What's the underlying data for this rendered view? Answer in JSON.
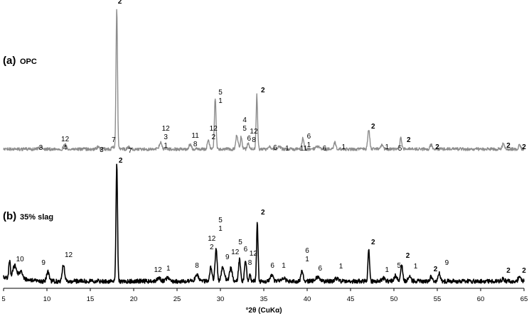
{
  "chart_data": {
    "type": "line",
    "xlabel": "°2θ (CuKα)",
    "ylabel": "",
    "xlim": [
      5,
      65
    ],
    "x_ticks": [
      5,
      10,
      15,
      20,
      25,
      30,
      35,
      40,
      45,
      50,
      55,
      60,
      65
    ],
    "y_ticks": "none",
    "grid": false,
    "legend": "none",
    "panels": [
      {
        "id": "a",
        "label_letter": "(a)",
        "label_text": "OPC",
        "color": "#8c8c8c",
        "baseline": 210,
        "noise_amp": 2.2,
        "peaks": [
          {
            "x": 9.3,
            "h": 3,
            "w": 0.25
          },
          {
            "x": 12.1,
            "h": 6,
            "w": 0.22
          },
          {
            "x": 15.9,
            "h": 3,
            "w": 0.2
          },
          {
            "x": 17.6,
            "h": 3,
            "w": 0.15
          },
          {
            "x": 18.05,
            "h": 196,
            "w": 0.12
          },
          {
            "x": 19.4,
            "h": 3,
            "w": 0.15
          },
          {
            "x": 23.1,
            "h": 10,
            "w": 0.18
          },
          {
            "x": 26.5,
            "h": 6,
            "w": 0.2
          },
          {
            "x": 28.6,
            "h": 14,
            "w": 0.15
          },
          {
            "x": 29.4,
            "h": 72,
            "w": 0.13
          },
          {
            "x": 31.9,
            "h": 20,
            "w": 0.18
          },
          {
            "x": 32.4,
            "h": 18,
            "w": 0.13
          },
          {
            "x": 33.2,
            "h": 8,
            "w": 0.15
          },
          {
            "x": 34.2,
            "h": 76,
            "w": 0.12
          },
          {
            "x": 35.7,
            "h": 4,
            "w": 0.15
          },
          {
            "x": 36.8,
            "h": 4,
            "w": 0.2
          },
          {
            "x": 39.5,
            "h": 15,
            "w": 0.16
          },
          {
            "x": 41.2,
            "h": 4,
            "w": 0.25
          },
          {
            "x": 43.2,
            "h": 9,
            "w": 0.16
          },
          {
            "x": 47.1,
            "h": 28,
            "w": 0.16
          },
          {
            "x": 48.6,
            "h": 6,
            "w": 0.18
          },
          {
            "x": 50.8,
            "h": 15,
            "w": 0.16
          },
          {
            "x": 54.3,
            "h": 6,
            "w": 0.18
          },
          {
            "x": 62.6,
            "h": 8,
            "w": 0.16
          },
          {
            "x": 64.5,
            "h": 6,
            "w": 0.16
          }
        ],
        "peak_labels": [
          {
            "x": 9.3,
            "y": 211,
            "lines": [
              "3"
            ]
          },
          {
            "x": 12.1,
            "y": 211,
            "lines": [
              "12",
              "4"
            ]
          },
          {
            "x": 16.3,
            "y": 214,
            "lines": [
              "3"
            ]
          },
          {
            "x": 17.7,
            "y": 200,
            "lines": [
              "7"
            ]
          },
          {
            "x": 18.4,
            "y": 5,
            "lines": [
              "2"
            ]
          },
          {
            "x": 19.6,
            "y": 215,
            "lines": [
              "7"
            ]
          },
          {
            "x": 23.7,
            "y": 208,
            "lines": [
              "12",
              "3",
              "1"
            ]
          },
          {
            "x": 27.1,
            "y": 206,
            "lines": [
              "11",
              "8"
            ]
          },
          {
            "x": 29.2,
            "y": 196,
            "lines": [
              "12",
              "2"
            ]
          },
          {
            "x": 30.0,
            "y": 145,
            "lines": [
              "5",
              "1"
            ]
          },
          {
            "x": 32.8,
            "y": 184,
            "lines": [
              "4",
              "5"
            ]
          },
          {
            "x": 33.3,
            "y": 198,
            "lines": [
              "6"
            ]
          },
          {
            "x": 33.85,
            "y": 200,
            "lines": [
              "12",
              "8"
            ]
          },
          {
            "x": 34.9,
            "y": 130,
            "lines": [
              "2"
            ]
          },
          {
            "x": 36.3,
            "y": 211,
            "lines": [
              "6"
            ]
          },
          {
            "x": 37.7,
            "y": 212,
            "lines": [
              "1"
            ]
          },
          {
            "x": 39.6,
            "y": 212,
            "lines": [
              "11"
            ]
          },
          {
            "x": 40.2,
            "y": 207,
            "lines": [
              "6",
              "1"
            ]
          },
          {
            "x": 42.0,
            "y": 212,
            "lines": [
              "6"
            ]
          },
          {
            "x": 44.2,
            "y": 210,
            "lines": [
              "1"
            ]
          },
          {
            "x": 47.6,
            "y": 181,
            "lines": [
              "2"
            ]
          },
          {
            "x": 49.2,
            "y": 210,
            "lines": [
              "1"
            ]
          },
          {
            "x": 50.7,
            "y": 212,
            "lines": [
              "5"
            ]
          },
          {
            "x": 51.7,
            "y": 200,
            "lines": [
              "2"
            ]
          },
          {
            "x": 55.0,
            "y": 210,
            "lines": [
              "2"
            ]
          },
          {
            "x": 63.2,
            "y": 208,
            "lines": [
              "2"
            ]
          },
          {
            "x": 65.0,
            "y": 210,
            "lines": [
              "2"
            ]
          }
        ]
      },
      {
        "id": "b",
        "label_letter": "(b)",
        "label_text": "35% slag",
        "color": "#000000",
        "baseline": 396,
        "noise_amp": 3,
        "peaks": [
          {
            "x": 5.7,
            "h": 25,
            "w": 0.12
          },
          {
            "x": 6.3,
            "h": 18,
            "w": 0.3
          },
          {
            "x": 7.0,
            "h": 11,
            "w": 0.3
          },
          {
            "x": 10.1,
            "h": 13,
            "w": 0.2
          },
          {
            "x": 11.9,
            "h": 24,
            "w": 0.18
          },
          {
            "x": 18.05,
            "h": 165,
            "w": 0.12
          },
          {
            "x": 22.9,
            "h": 4,
            "w": 0.3
          },
          {
            "x": 23.9,
            "h": 4,
            "w": 0.3
          },
          {
            "x": 27.3,
            "h": 9,
            "w": 0.3
          },
          {
            "x": 28.9,
            "h": 20,
            "w": 0.18
          },
          {
            "x": 29.5,
            "h": 48,
            "w": 0.16
          },
          {
            "x": 30.3,
            "h": 20,
            "w": 0.25
          },
          {
            "x": 31.2,
            "h": 18,
            "w": 0.22
          },
          {
            "x": 32.2,
            "h": 30,
            "w": 0.16
          },
          {
            "x": 32.9,
            "h": 28,
            "w": 0.16
          },
          {
            "x": 33.4,
            "h": 8,
            "w": 0.15
          },
          {
            "x": 34.25,
            "h": 83,
            "w": 0.12
          },
          {
            "x": 35.9,
            "h": 8,
            "w": 0.25
          },
          {
            "x": 37.2,
            "h": 5,
            "w": 0.3
          },
          {
            "x": 39.4,
            "h": 14,
            "w": 0.18
          },
          {
            "x": 41.2,
            "h": 6,
            "w": 0.3
          },
          {
            "x": 43.4,
            "h": 4,
            "w": 0.3
          },
          {
            "x": 47.1,
            "h": 44,
            "w": 0.13
          },
          {
            "x": 48.8,
            "h": 4,
            "w": 0.25
          },
          {
            "x": 50.2,
            "h": 8,
            "w": 0.22
          },
          {
            "x": 50.9,
            "h": 23,
            "w": 0.15
          },
          {
            "x": 51.8,
            "h": 9,
            "w": 0.2
          },
          {
            "x": 54.3,
            "h": 6,
            "w": 0.2
          },
          {
            "x": 55.2,
            "h": 11,
            "w": 0.18
          },
          {
            "x": 62.6,
            "h": 4,
            "w": 0.2
          },
          {
            "x": 64.5,
            "h": 8,
            "w": 0.2
          }
        ],
        "peak_labels": [
          {
            "x": 6.9,
            "y": 368,
            "lines": [
              "10"
            ]
          },
          {
            "x": 9.6,
            "y": 373,
            "lines": [
              "9"
            ]
          },
          {
            "x": 12.5,
            "y": 362,
            "lines": [
              "12"
            ]
          },
          {
            "x": 18.5,
            "y": 229,
            "lines": [
              "2"
            ]
          },
          {
            "x": 22.8,
            "y": 383,
            "lines": [
              "12"
            ]
          },
          {
            "x": 24.0,
            "y": 381,
            "lines": [
              "1"
            ]
          },
          {
            "x": 27.3,
            "y": 377,
            "lines": [
              "8"
            ]
          },
          {
            "x": 29.0,
            "y": 351,
            "lines": [
              "12",
              "2"
            ]
          },
          {
            "x": 30.0,
            "y": 325,
            "lines": [
              "5",
              "1"
            ]
          },
          {
            "x": 30.8,
            "y": 365,
            "lines": [
              "9"
            ]
          },
          {
            "x": 31.7,
            "y": 358,
            "lines": [
              "12"
            ]
          },
          {
            "x": 32.3,
            "y": 344,
            "lines": [
              "5"
            ]
          },
          {
            "x": 32.9,
            "y": 354,
            "lines": [
              "6"
            ]
          },
          {
            "x": 33.4,
            "y": 373,
            "lines": [
              "8"
            ]
          },
          {
            "x": 33.8,
            "y": 360,
            "lines": [
              "12"
            ]
          },
          {
            "x": 34.9,
            "y": 302,
            "lines": [
              "2"
            ]
          },
          {
            "x": 36.0,
            "y": 377,
            "lines": [
              "6"
            ]
          },
          {
            "x": 37.3,
            "y": 377,
            "lines": [
              "1"
            ]
          },
          {
            "x": 40.0,
            "y": 368,
            "lines": [
              "6",
              "1"
            ]
          },
          {
            "x": 41.5,
            "y": 381,
            "lines": [
              "6"
            ]
          },
          {
            "x": 43.9,
            "y": 378,
            "lines": [
              "1"
            ]
          },
          {
            "x": 47.6,
            "y": 344,
            "lines": [
              "2"
            ]
          },
          {
            "x": 49.2,
            "y": 383,
            "lines": [
              "1"
            ]
          },
          {
            "x": 50.6,
            "y": 377,
            "lines": [
              "5"
            ]
          },
          {
            "x": 51.6,
            "y": 363,
            "lines": [
              "2"
            ]
          },
          {
            "x": 52.5,
            "y": 378,
            "lines": [
              "1"
            ]
          },
          {
            "x": 54.8,
            "y": 382,
            "lines": [
              "2"
            ]
          },
          {
            "x": 56.1,
            "y": 373,
            "lines": [
              "9"
            ]
          },
          {
            "x": 63.2,
            "y": 384,
            "lines": [
              "2"
            ]
          },
          {
            "x": 65.0,
            "y": 384,
            "lines": [
              "2"
            ]
          }
        ]
      }
    ]
  }
}
